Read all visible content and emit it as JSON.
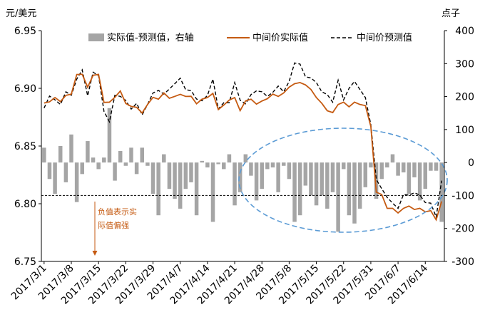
{
  "chart_data": {
    "type": "bar+line",
    "left_axis_unit": "元/美元",
    "right_axis_unit": "点子",
    "left_ylim": [
      6.75,
      6.95
    ],
    "left_yticks": [
      "6.75",
      "6.80",
      "6.85",
      "6.90",
      "6.95"
    ],
    "right_ylim": [
      -300,
      400
    ],
    "right_yticks": [
      "-300",
      "-200",
      "-100",
      "0",
      "100",
      "200",
      "300",
      "400"
    ],
    "x_tick_labels": [
      "2017/3/1",
      "2017/3/8",
      "2017/3/15",
      "2017/3/22",
      "2017/3/29",
      "2017/4/7",
      "2017/4/14",
      "2017/4/21",
      "2017/4/28",
      "2017/5/8",
      "2017/5/15",
      "2017/5/22",
      "2017/5/31",
      "2017/6/7",
      "2017/6/14"
    ],
    "x_tick_positions": [
      0,
      5,
      10,
      15,
      20,
      25,
      30,
      35,
      40,
      45,
      50,
      55,
      60,
      65,
      70
    ],
    "legend": {
      "bar": "实际值-预测值，右轴",
      "actual": "中间价实际值",
      "forecast": "中间价预测值"
    },
    "annotation": [
      "负值表示实",
      "际值偏强"
    ],
    "reference_line_right_axis": -100,
    "colors": {
      "bar": "#A5A5A5",
      "actual": "#C55A11",
      "forecast": "#000000",
      "ellipse": "#5B9BD5",
      "annotation": "#C55A11"
    },
    "series": [
      {
        "name": "实际值-预测值，右轴",
        "axis": "right",
        "values": [
          45,
          -50,
          -95,
          50,
          -60,
          85,
          -120,
          -35,
          65,
          15,
          -20,
          15,
          165,
          -55,
          35,
          -10,
          45,
          -35,
          45,
          -10,
          -95,
          -160,
          25,
          -80,
          -110,
          -140,
          -80,
          -60,
          -160,
          5,
          -15,
          -180,
          -5,
          -20,
          25,
          -130,
          -90,
          25,
          -40,
          -115,
          -80,
          -20,
          -15,
          -90,
          -10,
          -50,
          -180,
          -160,
          -70,
          -100,
          -130,
          -100,
          -140,
          -90,
          -210,
          -20,
          -160,
          -185,
          -140,
          -75,
          -15,
          -110,
          -50,
          -15,
          25,
          -40,
          -30,
          -95,
          -45,
          -115,
          -80,
          -25,
          -25,
          -180
        ]
      },
      {
        "name": "中间价实际值",
        "axis": "left",
        "values": [
          6.8873,
          6.8883,
          6.892,
          6.8885,
          6.8939,
          6.895,
          6.912,
          6.9122,
          6.901,
          6.9113,
          6.9121,
          6.8878,
          6.888,
          6.8922,
          6.8977,
          6.8869,
          6.8843,
          6.8835,
          6.8786,
          6.886,
          6.8922,
          6.8906,
          6.896,
          6.8914,
          6.893,
          6.8948,
          6.893,
          6.8931,
          6.8866,
          6.8906,
          6.892,
          6.8956,
          6.8816,
          6.8855,
          6.8898,
          6.892,
          6.8807,
          6.8891,
          6.8906,
          6.8863,
          6.889,
          6.891,
          6.895,
          6.893,
          6.896,
          6.901,
          6.904,
          6.905,
          6.903,
          6.899,
          6.892,
          6.887,
          6.8806,
          6.879,
          6.886,
          6.888,
          6.884,
          6.888,
          6.886,
          6.885,
          6.867,
          6.81,
          6.808,
          6.796,
          6.796,
          6.792,
          6.796,
          6.798,
          6.795,
          6.796,
          6.793,
          6.794,
          6.786,
          6.802
        ]
      },
      {
        "name": "中间价预测值",
        "axis": "left",
        "values": [
          6.8829,
          6.8933,
          6.89,
          6.886,
          6.897,
          6.894,
          6.908,
          6.916,
          6.8935,
          6.914,
          6.911,
          6.88,
          6.871,
          6.894,
          6.893,
          6.8895,
          6.882,
          6.887,
          6.877,
          6.886,
          6.896,
          6.8982,
          6.895,
          6.8994,
          6.904,
          6.9088,
          6.8988,
          6.898,
          6.8907,
          6.8892,
          6.8938,
          6.908,
          6.8821,
          6.8875,
          6.8875,
          6.905,
          6.8897,
          6.8866,
          6.8946,
          6.8978,
          6.897,
          6.893,
          6.8965,
          6.902,
          6.897,
          6.906,
          6.922,
          6.921,
          6.91,
          6.909,
          6.905,
          6.897,
          6.8946,
          6.888,
          6.907,
          6.89,
          6.9,
          6.906,
          6.899,
          6.892,
          6.8685,
          6.821,
          6.813,
          6.8055,
          6.8005,
          6.796,
          6.808,
          6.8075,
          6.8095,
          6.8075,
          6.801,
          6.8005,
          6.7885,
          6.82
        ]
      }
    ]
  }
}
